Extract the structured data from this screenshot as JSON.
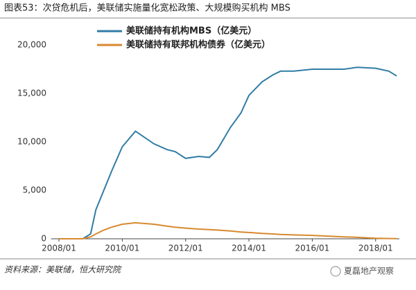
{
  "chart_data": {
    "type": "line",
    "title": "图表53：次贷危机后，美联储实施量化宽松政策、大规模购买机构 MBS",
    "source": "资料来源：美联储，恒大研究院",
    "watermark": "夏磊地产观察",
    "x": [
      "2008/01",
      "2008/10",
      "2009/01",
      "2009/03",
      "2009/06",
      "2009/09",
      "2010/01",
      "2010/06",
      "2011/01",
      "2011/06",
      "2011/09",
      "2012/01",
      "2012/06",
      "2012/10",
      "2013/01",
      "2013/06",
      "2013/10",
      "2014/01",
      "2014/06",
      "2014/10",
      "2015/01",
      "2015/06",
      "2016/01",
      "2017/01",
      "2017/06",
      "2018/01",
      "2018/06",
      "2018/09"
    ],
    "series": [
      {
        "name": "美联储持有机构MBS（亿美元）",
        "color": "#2f7ca6",
        "values": [
          0,
          0,
          500,
          3000,
          5000,
          7000,
          9500,
          11100,
          9800,
          9200,
          9000,
          8300,
          8500,
          8400,
          9200,
          11500,
          13000,
          14800,
          16200,
          16900,
          17300,
          17300,
          17500,
          17500,
          17700,
          17600,
          17300,
          16800
        ]
      },
      {
        "name": "美联储持有联邦机构债券（亿美元）",
        "color": "#d7892e",
        "values": [
          0,
          0,
          200,
          500,
          900,
          1200,
          1500,
          1650,
          1500,
          1300,
          1200,
          1100,
          1000,
          950,
          900,
          800,
          700,
          650,
          550,
          500,
          450,
          400,
          350,
          200,
          150,
          50,
          30,
          20
        ]
      }
    ],
    "xlim": [
      "2007/10",
      "2018/10"
    ],
    "xticks": [
      "2008/01",
      "2010/01",
      "2012/01",
      "2014/01",
      "2016/01",
      "2018/01"
    ],
    "ylim": [
      0,
      20000
    ],
    "yticks": [
      0,
      {
        "value": 5000,
        "label": "5,000"
      },
      {
        "value": 10000,
        "label": "10,000"
      },
      {
        "value": 15000,
        "label": "15,000"
      },
      {
        "value": 20000,
        "label": "20,000"
      }
    ],
    "grid": false
  }
}
